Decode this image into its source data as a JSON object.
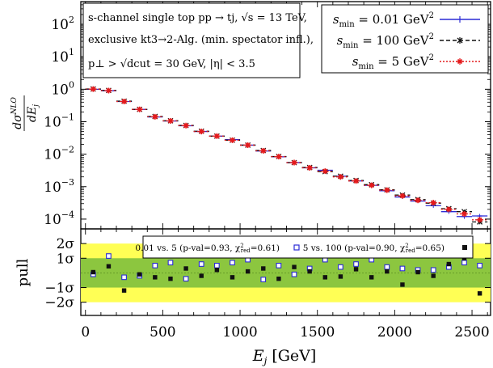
{
  "chart_data": [
    {
      "type": "line",
      "name": "main",
      "ylabel_num": "dσ",
      "ylabel_num_sup": "NLO",
      "ylabel_den": "dE",
      "ylabel_den_sub": "j",
      "yscale": "log",
      "ylim": [
        5e-05,
        500
      ],
      "xlim": [
        -30,
        2620
      ],
      "y_ticks": [
        {
          "v": 100,
          "base": "10",
          "exp": "2"
        },
        {
          "v": 10,
          "base": "10",
          "exp": "1"
        },
        {
          "v": 1,
          "base": "10",
          "exp": "0"
        },
        {
          "v": 0.1,
          "base": "10",
          "exp": "−1"
        },
        {
          "v": 0.01,
          "base": "10",
          "exp": "−2"
        },
        {
          "v": 0.001,
          "base": "10",
          "exp": "−3"
        },
        {
          "v": 0.0001,
          "base": "10",
          "exp": "−4"
        }
      ],
      "annotation": {
        "line1": "s-channel single top  pp → tj,  √s = 13 TeV,",
        "line2": "exclusive kt3→2-Alg. (min. spectator infl.),",
        "line3": "p⊥ > √dcut = 30 GeV,  |η| < 3.5"
      },
      "bin_centers": [
        50,
        150,
        250,
        350,
        450,
        550,
        650,
        750,
        850,
        950,
        1050,
        1150,
        1250,
        1350,
        1450,
        1550,
        1650,
        1750,
        1850,
        1950,
        2050,
        2150,
        2250,
        2350,
        2450,
        2550
      ],
      "bin_half_width": 50,
      "series": [
        {
          "name": "s_min = 0.01 GeV²",
          "label": "s",
          "label_sub": "min",
          "label_rest": " = 0.01 GeV",
          "label_sup": "2",
          "color": "#2b2bd6",
          "style": "solid",
          "marker": "plus",
          "values": [
            1.0,
            0.9,
            0.42,
            0.24,
            0.14,
            0.105,
            0.075,
            0.05,
            0.036,
            0.028,
            0.019,
            0.0125,
            0.0083,
            0.0055,
            0.0038,
            0.0032,
            0.0021,
            0.0015,
            0.0011,
            0.00075,
            0.00048,
            0.00036,
            0.00026,
            0.00017,
            0.00012,
            0.000125
          ]
        },
        {
          "name": "s_min = 100 GeV²",
          "label": "s",
          "label_sub": "min",
          "label_rest": " = 100 GeV",
          "label_sup": "2",
          "color": "#111111",
          "style": "dashed",
          "marker": "x",
          "values": [
            1.02,
            0.92,
            0.43,
            0.24,
            0.145,
            0.107,
            0.077,
            0.051,
            0.036,
            0.027,
            0.019,
            0.013,
            0.0085,
            0.0055,
            0.0039,
            0.0029,
            0.0021,
            0.00155,
            0.00115,
            0.0008,
            0.00055,
            0.0004,
            0.00031,
            0.00021,
            0.00017,
            8.2e-05
          ]
        },
        {
          "name": "s_min = 5 GeV²",
          "label": "s",
          "label_sub": "min",
          "label_rest": " = 5 GeV",
          "label_sup": "2",
          "color": "#e41a1c",
          "style": "dotted",
          "marker": "star",
          "values": [
            1.01,
            0.91,
            0.42,
            0.24,
            0.142,
            0.106,
            0.076,
            0.05,
            0.036,
            0.027,
            0.019,
            0.0127,
            0.0084,
            0.0055,
            0.0038,
            0.003,
            0.002,
            0.0015,
            0.0011,
            0.00078,
            0.00052,
            0.00038,
            0.00032,
            0.0002,
            0.000145,
            9.5e-05
          ]
        }
      ]
    },
    {
      "type": "scatter",
      "name": "pull",
      "ylabel": "pull",
      "ylim": [
        -2.9,
        3.0
      ],
      "xlim": [
        -30,
        2620
      ],
      "xlabel": "E",
      "xlabel_sub": "j",
      "xlabel_rest": " [GeV]",
      "x_ticks": [
        "0",
        "500",
        "1000",
        "1500",
        "2000",
        "2500"
      ],
      "y_ticks": [
        {
          "v": 2,
          "label": "2σ"
        },
        {
          "v": 1,
          "label": "1σ"
        },
        {
          "v": -1,
          "label": "−1σ"
        },
        {
          "v": -2,
          "label": "−2σ"
        }
      ],
      "bands": {
        "one_sigma_color": "#8cc63f",
        "two_sigma_color": "#ffff55"
      },
      "series": [
        {
          "name": "0.01 vs. 5",
          "label": "0.01 vs. 5 (p-val=0.93, χ",
          "label_sup": "2",
          "label_sub": "red",
          "label_end": "=0.61)",
          "color": "#2b2bd6",
          "marker": "open-square",
          "x": [
            50,
            150,
            250,
            350,
            450,
            550,
            650,
            750,
            850,
            950,
            1050,
            1150,
            1250,
            1350,
            1450,
            1550,
            1650,
            1750,
            1850,
            1950,
            2050,
            2150,
            2250,
            2350,
            2450,
            2550
          ],
          "values": [
            -0.1,
            1.15,
            -0.3,
            -0.2,
            0.5,
            0.7,
            -0.4,
            0.6,
            0.5,
            0.7,
            0.9,
            -0.45,
            0.5,
            -0.1,
            0.3,
            0.9,
            0.4,
            0.6,
            0.9,
            0.4,
            0.3,
            0.2,
            0.2,
            0.4,
            0.7,
            0.5
          ]
        },
        {
          "name": "5 vs. 100",
          "label": "5 vs. 100 (p-val=0.90, χ",
          "label_sup": "2",
          "label_sub": "red",
          "label_end": "=0.65)",
          "color": "#111111",
          "marker": "filled-square",
          "x": [
            50,
            150,
            250,
            350,
            450,
            550,
            650,
            750,
            850,
            950,
            1050,
            1150,
            1250,
            1350,
            1450,
            1550,
            1650,
            1750,
            1850,
            1950,
            2050,
            2150,
            2250,
            2350,
            2450,
            2550
          ],
          "values": [
            0.05,
            0.45,
            -1.2,
            -0.1,
            -0.3,
            -0.4,
            0.3,
            -0.2,
            0.2,
            -0.3,
            0.1,
            0.3,
            -0.4,
            0.4,
            0.1,
            -0.3,
            -0.25,
            0.25,
            -0.3,
            0.1,
            -0.8,
            0.05,
            -0.2,
            0.6,
            1.0,
            -1.4
          ]
        }
      ]
    }
  ]
}
